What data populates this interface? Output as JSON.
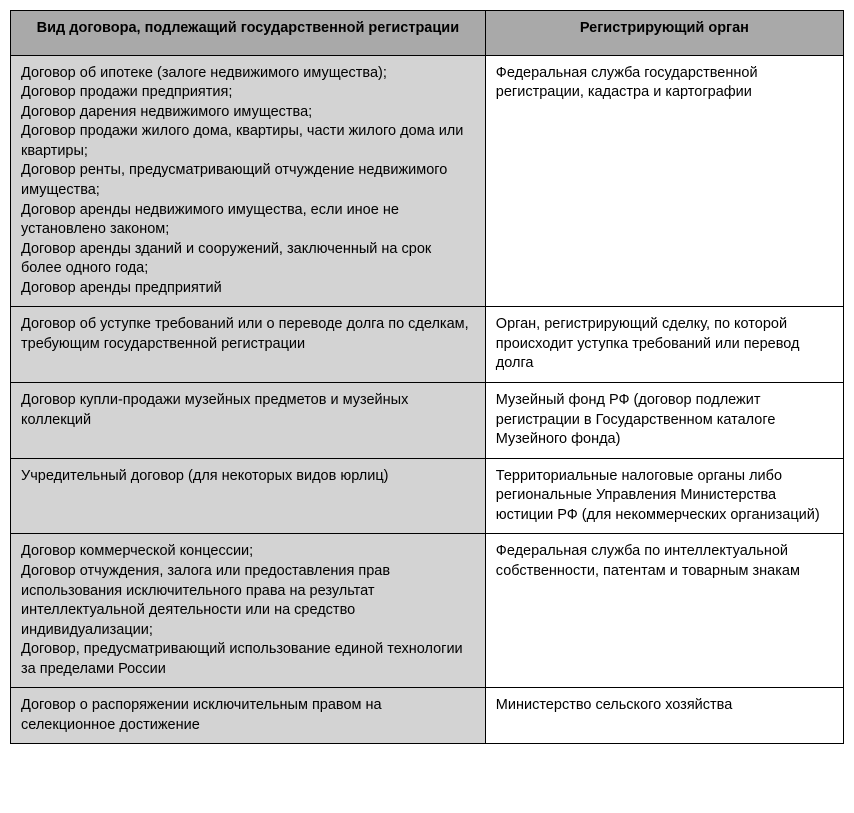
{
  "table": {
    "columns": [
      "Вид договора, подлежащий государственной регистрации",
      "Регистрирующий орган"
    ],
    "rows": [
      {
        "left": "Договор об ипотеке (залоге недвижимого имущества);\nДоговор продажи предприятия;\nДоговор дарения недвижимого имущества;\nДоговор продажи жилого дома, квартиры, части жилого дома или квартиры;\nДоговор ренты, предусматривающий отчуждение недвижимого имущества;\nДоговор аренды недвижимого имущества, если иное не установлено законом;\nДоговор аренды зданий и сооружений, заключенный на срок более одного года;\nДоговор аренды предприятий",
        "right": "Федеральная служба государственной регистрации, кадастра и картографии"
      },
      {
        "left": "Договор об уступке требований или о переводе долга по сделкам, требующим государственной регистрации",
        "right": "Орган, регистрирующий сделку, по которой происходит уступка требований или перевод долга"
      },
      {
        "left": "Договор купли-продажи музейных предметов и музейных коллекций",
        "right": "Музейный фонд РФ (договор подлежит регистрации в Государственном каталоге Музейного фонда)"
      },
      {
        "left": "Учредительный договор (для некоторых видов юрлиц)",
        "right": "Территориальные налоговые органы либо региональные Управления Министерства юстиции РФ (для некоммерческих организаций)"
      },
      {
        "left": "Договор коммерческой концессии;\nДоговор отчуждения, залога или предоставления прав использования исключительного права на результат интеллектуальной деятельности или на средство индивидуализации;\nДоговор, предусматривающий использование единой технологии за пределами России",
        "right": "Федеральная служба по интеллектуальной собственности, патентам и товарным знакам"
      },
      {
        "left": "Договор о распоряжении исключительным правом на селекционное достижение",
        "right": "Министерство сельского хозяйства"
      }
    ],
    "header_bg": "#a9a9a9",
    "left_col_bg": "#d3d3d3",
    "right_col_bg": "#ffffff",
    "border_color": "#000000",
    "font_size": 14.5
  }
}
